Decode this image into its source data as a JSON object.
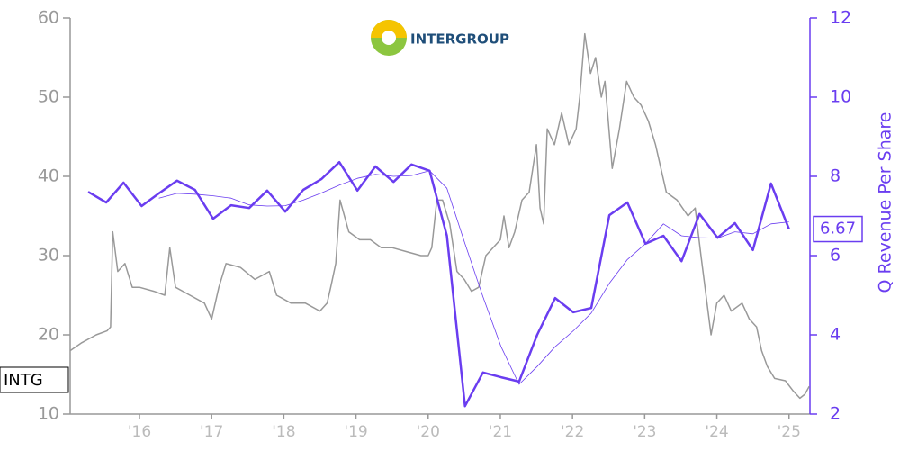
{
  "chart_data": {
    "type": "line",
    "logo_text": "INTERGROUP",
    "ticker": "INTG",
    "y2label": "Q Revenue Per Share",
    "xlim": [
      2015.04,
      2025.29
    ],
    "xticks": [
      {
        "value": 2016,
        "label": "'16"
      },
      {
        "value": 2017,
        "label": "'17"
      },
      {
        "value": 2018,
        "label": "'18"
      },
      {
        "value": 2019,
        "label": "'19"
      },
      {
        "value": 2020,
        "label": "'20"
      },
      {
        "value": 2021,
        "label": "'21"
      },
      {
        "value": 2022,
        "label": "'22"
      },
      {
        "value": 2023,
        "label": "'23"
      },
      {
        "value": 2024,
        "label": "'24"
      },
      {
        "value": 2025,
        "label": "'25"
      }
    ],
    "ylim": [
      10,
      60
    ],
    "yticks": [
      10,
      20,
      30,
      40,
      50,
      60
    ],
    "y2lim": [
      2,
      12
    ],
    "y2ticks": [
      2,
      4,
      6,
      8,
      10,
      12
    ],
    "axis_color": "#999999",
    "y2_color": "#6a3df0",
    "series": [
      {
        "color": "#999999",
        "x": [
          2015.04,
          2015.2,
          2015.4,
          2015.55,
          2015.6,
          2015.63,
          2015.7,
          2015.8,
          2015.9,
          2016.0,
          2016.2,
          2016.35,
          2016.42,
          2016.5,
          2016.7,
          2016.9,
          2017.0,
          2017.1,
          2017.2,
          2017.4,
          2017.6,
          2017.8,
          2017.9,
          2018.1,
          2018.3,
          2018.5,
          2018.6,
          2018.65,
          2018.72,
          2018.78,
          2018.9,
          2019.05,
          2019.2,
          2019.35,
          2019.5,
          2019.7,
          2019.9,
          2020.0,
          2020.05,
          2020.12,
          2020.2,
          2020.3,
          2020.4,
          2020.5,
          2020.6,
          2020.7,
          2020.8,
          2020.9,
          2021.0,
          2021.05,
          2021.12,
          2021.2,
          2021.3,
          2021.4,
          2021.5,
          2021.55,
          2021.6,
          2021.65,
          2021.75,
          2021.85,
          2021.95,
          2022.05,
          2022.1,
          2022.17,
          2022.25,
          2022.32,
          2022.4,
          2022.45,
          2022.55,
          2022.65,
          2022.75,
          2022.85,
          2022.95,
          2023.05,
          2023.15,
          2023.3,
          2023.45,
          2023.6,
          2023.7,
          2023.78,
          2023.85,
          2023.92,
          2024.0,
          2024.1,
          2024.2,
          2024.35,
          2024.45,
          2024.55,
          2024.62,
          2024.7,
          2024.8,
          2024.95,
          2025.05,
          2025.15,
          2025.22,
          2025.28
        ],
        "values": [
          18,
          19,
          20,
          20.5,
          21,
          33,
          28,
          29,
          26,
          26,
          25.5,
          25,
          31,
          26,
          25,
          24,
          22,
          26,
          29,
          28.5,
          27,
          28,
          25,
          24,
          24,
          23,
          24,
          26,
          29,
          37,
          33,
          32,
          32,
          31,
          31,
          30.5,
          30,
          30,
          31,
          37,
          37,
          34,
          28,
          27,
          25.5,
          26,
          30,
          31,
          32,
          35,
          31,
          33,
          37,
          38,
          44,
          36,
          34,
          46,
          44,
          48,
          44,
          46,
          50,
          58,
          53,
          55,
          50,
          52,
          41,
          46,
          52,
          50,
          49,
          47,
          44,
          38,
          37,
          35,
          36,
          30,
          25,
          20,
          24,
          25,
          23,
          24,
          22,
          21,
          18,
          16,
          14.5,
          14.2,
          13,
          12,
          12.5,
          13.5
        ]
      },
      {
        "color": "#6a3df0",
        "axis": "y2",
        "x": [
          2015.29,
          2015.54,
          2015.78,
          2016.03,
          2016.27,
          2016.52,
          2016.77,
          2017.02,
          2017.27,
          2017.52,
          2017.77,
          2018.02,
          2018.27,
          2018.52,
          2018.77,
          2019.02,
          2019.27,
          2019.52,
          2019.77,
          2020.02,
          2020.26,
          2020.51,
          2020.76,
          2021.01,
          2021.26,
          2021.51,
          2021.76,
          2022.01,
          2022.26,
          2022.51,
          2022.76,
          2023.01,
          2023.26,
          2023.51,
          2023.76,
          2024.01,
          2024.25,
          2024.5,
          2024.75,
          2025.0
        ],
        "values": [
          7.61,
          7.34,
          7.84,
          7.25,
          7.57,
          7.89,
          7.66,
          6.93,
          7.27,
          7.2,
          7.64,
          7.11,
          7.66,
          7.93,
          8.36,
          7.64,
          8.25,
          7.86,
          8.3,
          8.14,
          6.5,
          2.2,
          3.05,
          2.93,
          2.82,
          4.0,
          4.93,
          4.57,
          4.68,
          7.02,
          7.34,
          6.3,
          6.5,
          5.86,
          7.05,
          6.45,
          6.82,
          6.14,
          7.82,
          6.67
        ],
        "value_labels": [
          null,
          null,
          null,
          null,
          null,
          null,
          null,
          null,
          null,
          null,
          null,
          null,
          null,
          null,
          null,
          null,
          null,
          null,
          null,
          null,
          null,
          null,
          null,
          null,
          null,
          null,
          null,
          null,
          null,
          null,
          null,
          null,
          null,
          null,
          null,
          null,
          null,
          null,
          null,
          "6.67"
        ]
      },
      {
        "color": "#6a3df0",
        "axis": "y2",
        "x": [
          2016.27,
          2016.52,
          2016.77,
          2017.02,
          2017.27,
          2017.52,
          2017.77,
          2018.02,
          2018.27,
          2018.52,
          2018.77,
          2019.02,
          2019.27,
          2019.52,
          2019.77,
          2020.02,
          2020.26,
          2020.51,
          2020.76,
          2021.01,
          2021.26,
          2021.51,
          2021.76,
          2022.01,
          2022.26,
          2022.51,
          2022.76,
          2023.01,
          2023.26,
          2023.51,
          2023.76,
          2024.01,
          2024.25,
          2024.5,
          2024.75,
          2025.0
        ],
        "values": [
          7.45,
          7.57,
          7.55,
          7.51,
          7.45,
          7.28,
          7.25,
          7.26,
          7.4,
          7.58,
          7.78,
          7.95,
          8.05,
          8.0,
          8.02,
          8.14,
          7.7,
          6.3,
          4.96,
          3.7,
          2.75,
          3.2,
          3.7,
          4.1,
          4.55,
          5.3,
          5.9,
          6.3,
          6.8,
          6.5,
          6.45,
          6.44,
          6.6,
          6.55,
          6.8,
          6.85
        ]
      }
    ]
  }
}
